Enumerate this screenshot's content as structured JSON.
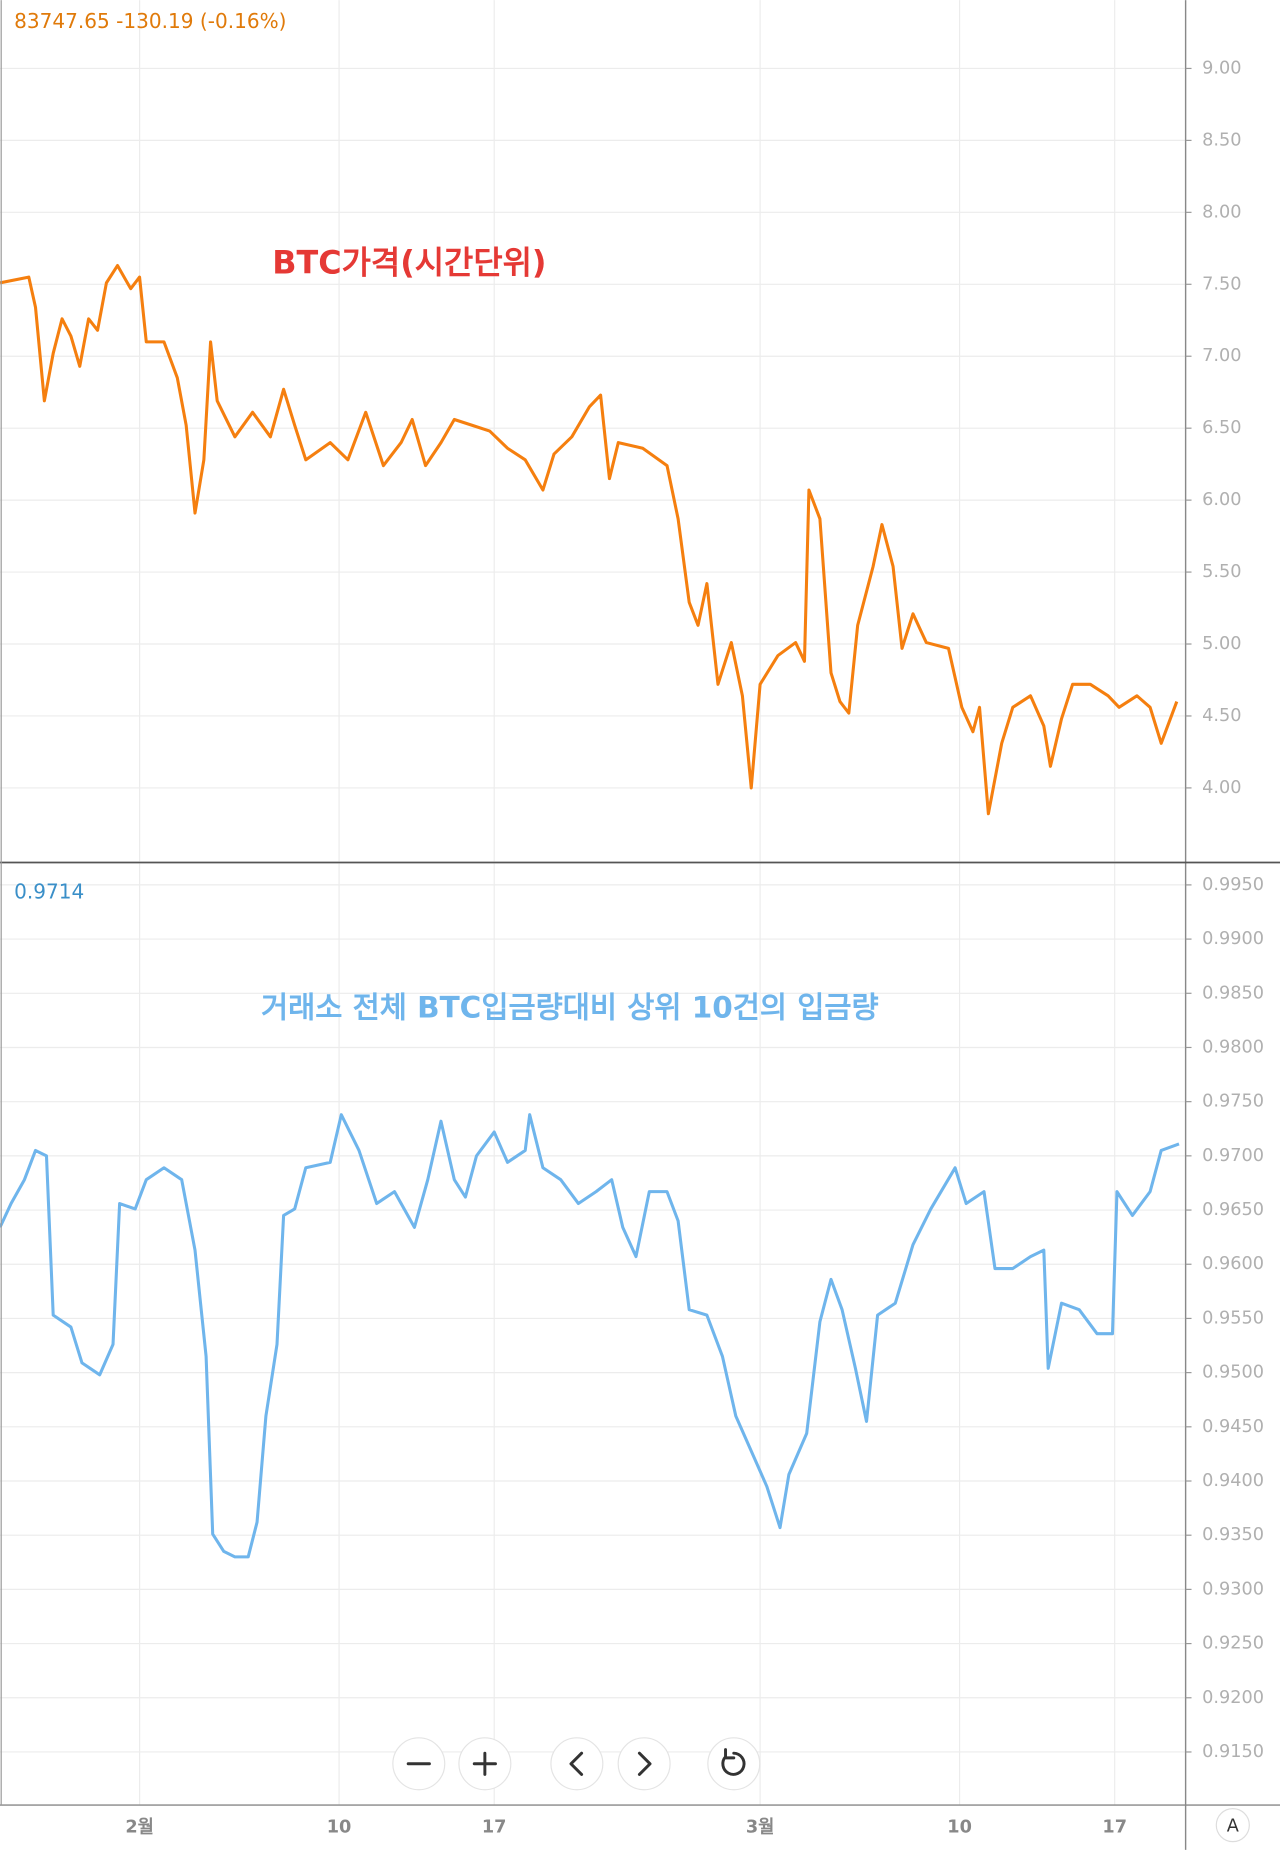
{
  "chart_data": [
    {
      "type": "line",
      "header_text": "83747.65  -130.19 (-0.16%)",
      "annotation": "BTC가격(시간단위)",
      "series": [
        {
          "color": "#f57f0f",
          "x": [
            25.7,
            27.0,
            27.3,
            27.7,
            28.1,
            28.5,
            28.9,
            29.3,
            29.7,
            30.1,
            30.5,
            31.0,
            31.6,
            32.0,
            32.3,
            33.1,
            33.7,
            34.1,
            34.5,
            34.9,
            35.2,
            35.5,
            36.3,
            37.1,
            37.9,
            38.5,
            39.0,
            39.5,
            40.6,
            41.4,
            42.2,
            43.0,
            43.8,
            44.3,
            44.9,
            45.6,
            46.2,
            47.0,
            47.8,
            48.6,
            49.4,
            50.2,
            50.7,
            51.5,
            52.3,
            52.8,
            53.2,
            53.6,
            54.7,
            55.8,
            56.3,
            56.8,
            57.2,
            57.6,
            58.1,
            58.7,
            59.2,
            59.6,
            60.0,
            60.8,
            61.6,
            62.0,
            62.2,
            62.7,
            63.2,
            63.6,
            64.0,
            64.4,
            65.1,
            65.5,
            66.0,
            66.4,
            66.9,
            67.5,
            68.5,
            69.1,
            69.6,
            69.9,
            70.3,
            70.9,
            71.4,
            72.2,
            72.8,
            73.1,
            73.6,
            74.1,
            74.9,
            75.7,
            76.2,
            77.0,
            77.6,
            78.1,
            78.8
          ],
          "values": [
            7.51,
            7.55,
            7.34,
            6.69,
            7.02,
            7.26,
            7.14,
            6.93,
            7.26,
            7.18,
            7.51,
            7.63,
            7.47,
            7.55,
            7.1,
            7.1,
            6.85,
            6.52,
            5.91,
            6.28,
            7.1,
            6.69,
            6.44,
            6.61,
            6.44,
            6.77,
            6.52,
            6.28,
            6.4,
            6.28,
            6.61,
            6.24,
            6.4,
            6.56,
            6.24,
            6.4,
            6.56,
            6.52,
            6.48,
            6.36,
            6.28,
            6.07,
            6.32,
            6.44,
            6.65,
            6.73,
            6.15,
            6.4,
            6.36,
            6.24,
            5.87,
            5.29,
            5.13,
            5.42,
            4.72,
            5.01,
            4.64,
            4.0,
            4.72,
            4.92,
            5.01,
            4.88,
            6.07,
            5.87,
            4.8,
            4.6,
            4.52,
            5.13,
            5.54,
            5.83,
            5.54,
            4.97,
            5.21,
            5.01,
            4.97,
            4.56,
            4.39,
            4.56,
            3.82,
            4.31,
            4.56,
            4.64,
            4.43,
            4.15,
            4.48,
            4.72,
            4.72,
            4.64,
            4.56,
            4.64,
            4.56,
            4.31,
            4.6
          ]
        }
      ],
      "xlim": [
        25.7,
        79.2
      ],
      "ylim": [
        3.49,
        9.475
      ],
      "yticks": [
        {
          "value": 4,
          "label": "4.00"
        },
        {
          "value": 4.5,
          "label": "4.50"
        },
        {
          "value": 5,
          "label": "5.00"
        },
        {
          "value": 5.5,
          "label": "5.50"
        },
        {
          "value": 6,
          "label": "6.00"
        },
        {
          "value": 6.5,
          "label": "6.50"
        },
        {
          "value": 7,
          "label": "7.00"
        },
        {
          "value": 7.5,
          "label": "7.50"
        },
        {
          "value": 8,
          "label": "8.00"
        },
        {
          "value": 8.5,
          "label": "8.50"
        },
        {
          "value": 9,
          "label": "9.00"
        }
      ]
    },
    {
      "type": "line",
      "current_value": 0.9714,
      "annotation": "거래소 전체 BTC입금량대비 상위 10건의 입금량",
      "series": [
        {
          "color": "#6fb5ec",
          "x": [
            25.7,
            26.2,
            26.8,
            27.3,
            27.8,
            28.1,
            28.9,
            29.4,
            30.2,
            30.8,
            31.1,
            31.8,
            32.3,
            33.1,
            33.9,
            34.5,
            35.0,
            35.3,
            35.8,
            36.3,
            36.9,
            37.3,
            37.7,
            38.2,
            38.5,
            39.0,
            39.5,
            40.6,
            41.1,
            41.9,
            42.7,
            43.5,
            44.4,
            45.0,
            45.6,
            46.2,
            46.7,
            47.2,
            48.0,
            48.6,
            49.4,
            49.6,
            50.2,
            51.0,
            51.8,
            52.6,
            53.3,
            53.8,
            54.4,
            55.0,
            55.8,
            56.3,
            56.8,
            57.6,
            58.3,
            58.9,
            59.7,
            60.3,
            60.9,
            61.3,
            62.1,
            62.7,
            63.2,
            63.7,
            64.3,
            64.8,
            65.3,
            66.1,
            66.9,
            67.7,
            68.8,
            69.3,
            70.1,
            70.6,
            71.4,
            72.2,
            72.8,
            73.0,
            73.6,
            74.4,
            75.2,
            75.9,
            76.1,
            76.8,
            77.6,
            78.1,
            78.9
          ],
          "values": [
            0.9634,
            0.9656,
            0.9678,
            0.9705,
            0.97,
            0.9553,
            0.9542,
            0.9509,
            0.9498,
            0.9526,
            0.9656,
            0.9651,
            0.9678,
            0.9689,
            0.9678,
            0.9613,
            0.9515,
            0.9351,
            0.9335,
            0.933,
            0.933,
            0.9362,
            0.946,
            0.9526,
            0.9645,
            0.9651,
            0.9689,
            0.9694,
            0.9738,
            0.9705,
            0.9656,
            0.9667,
            0.9634,
            0.9678,
            0.9732,
            0.9678,
            0.9662,
            0.97,
            0.9722,
            0.9694,
            0.9705,
            0.9738,
            0.9689,
            0.9678,
            0.9656,
            0.9667,
            0.9678,
            0.9634,
            0.9607,
            0.9667,
            0.9667,
            0.964,
            0.9558,
            0.9553,
            0.9515,
            0.946,
            0.9423,
            0.9395,
            0.9357,
            0.9406,
            0.9444,
            0.9547,
            0.9586,
            0.9558,
            0.9504,
            0.9455,
            0.9553,
            0.9564,
            0.9618,
            0.9651,
            0.9689,
            0.9656,
            0.9667,
            0.9596,
            0.9596,
            0.9607,
            0.9613,
            0.9504,
            0.9564,
            0.9558,
            0.9536,
            0.9536,
            0.9667,
            0.9645,
            0.9667,
            0.9705,
            0.9711
          ]
        }
      ],
      "xlim": [
        25.7,
        79.2
      ],
      "ylim": [
        0.9101,
        0.99696
      ],
      "xticks": [
        {
          "value": 32,
          "label": "2월"
        },
        {
          "value": 41,
          "label": "10"
        },
        {
          "value": 48,
          "label": "17"
        },
        {
          "value": 60,
          "label": "3월"
        },
        {
          "value": 69,
          "label": "10"
        },
        {
          "value": 76,
          "label": "17"
        }
      ],
      "yticks": [
        {
          "value": 0.915,
          "label": "0.9150"
        },
        {
          "value": 0.92,
          "label": "0.9200"
        },
        {
          "value": 0.925,
          "label": "0.9250"
        },
        {
          "value": 0.93,
          "label": "0.9300"
        },
        {
          "value": 0.935,
          "label": "0.9350"
        },
        {
          "value": 0.94,
          "label": "0.9400"
        },
        {
          "value": 0.945,
          "label": "0.9450"
        },
        {
          "value": 0.95,
          "label": "0.9500"
        },
        {
          "value": 0.955,
          "label": "0.9550"
        },
        {
          "value": 0.96,
          "label": "0.9600"
        },
        {
          "value": 0.965,
          "label": "0.9650"
        },
        {
          "value": 0.97,
          "label": "0.9700"
        },
        {
          "value": 0.975,
          "label": "0.9750"
        },
        {
          "value": 0.98,
          "label": "0.9800"
        },
        {
          "value": 0.985,
          "label": "0.9850"
        },
        {
          "value": 0.99,
          "label": "0.9900"
        },
        {
          "value": 0.995,
          "label": "0.9950"
        }
      ]
    }
  ],
  "controls": {
    "scale_mode": "A"
  }
}
